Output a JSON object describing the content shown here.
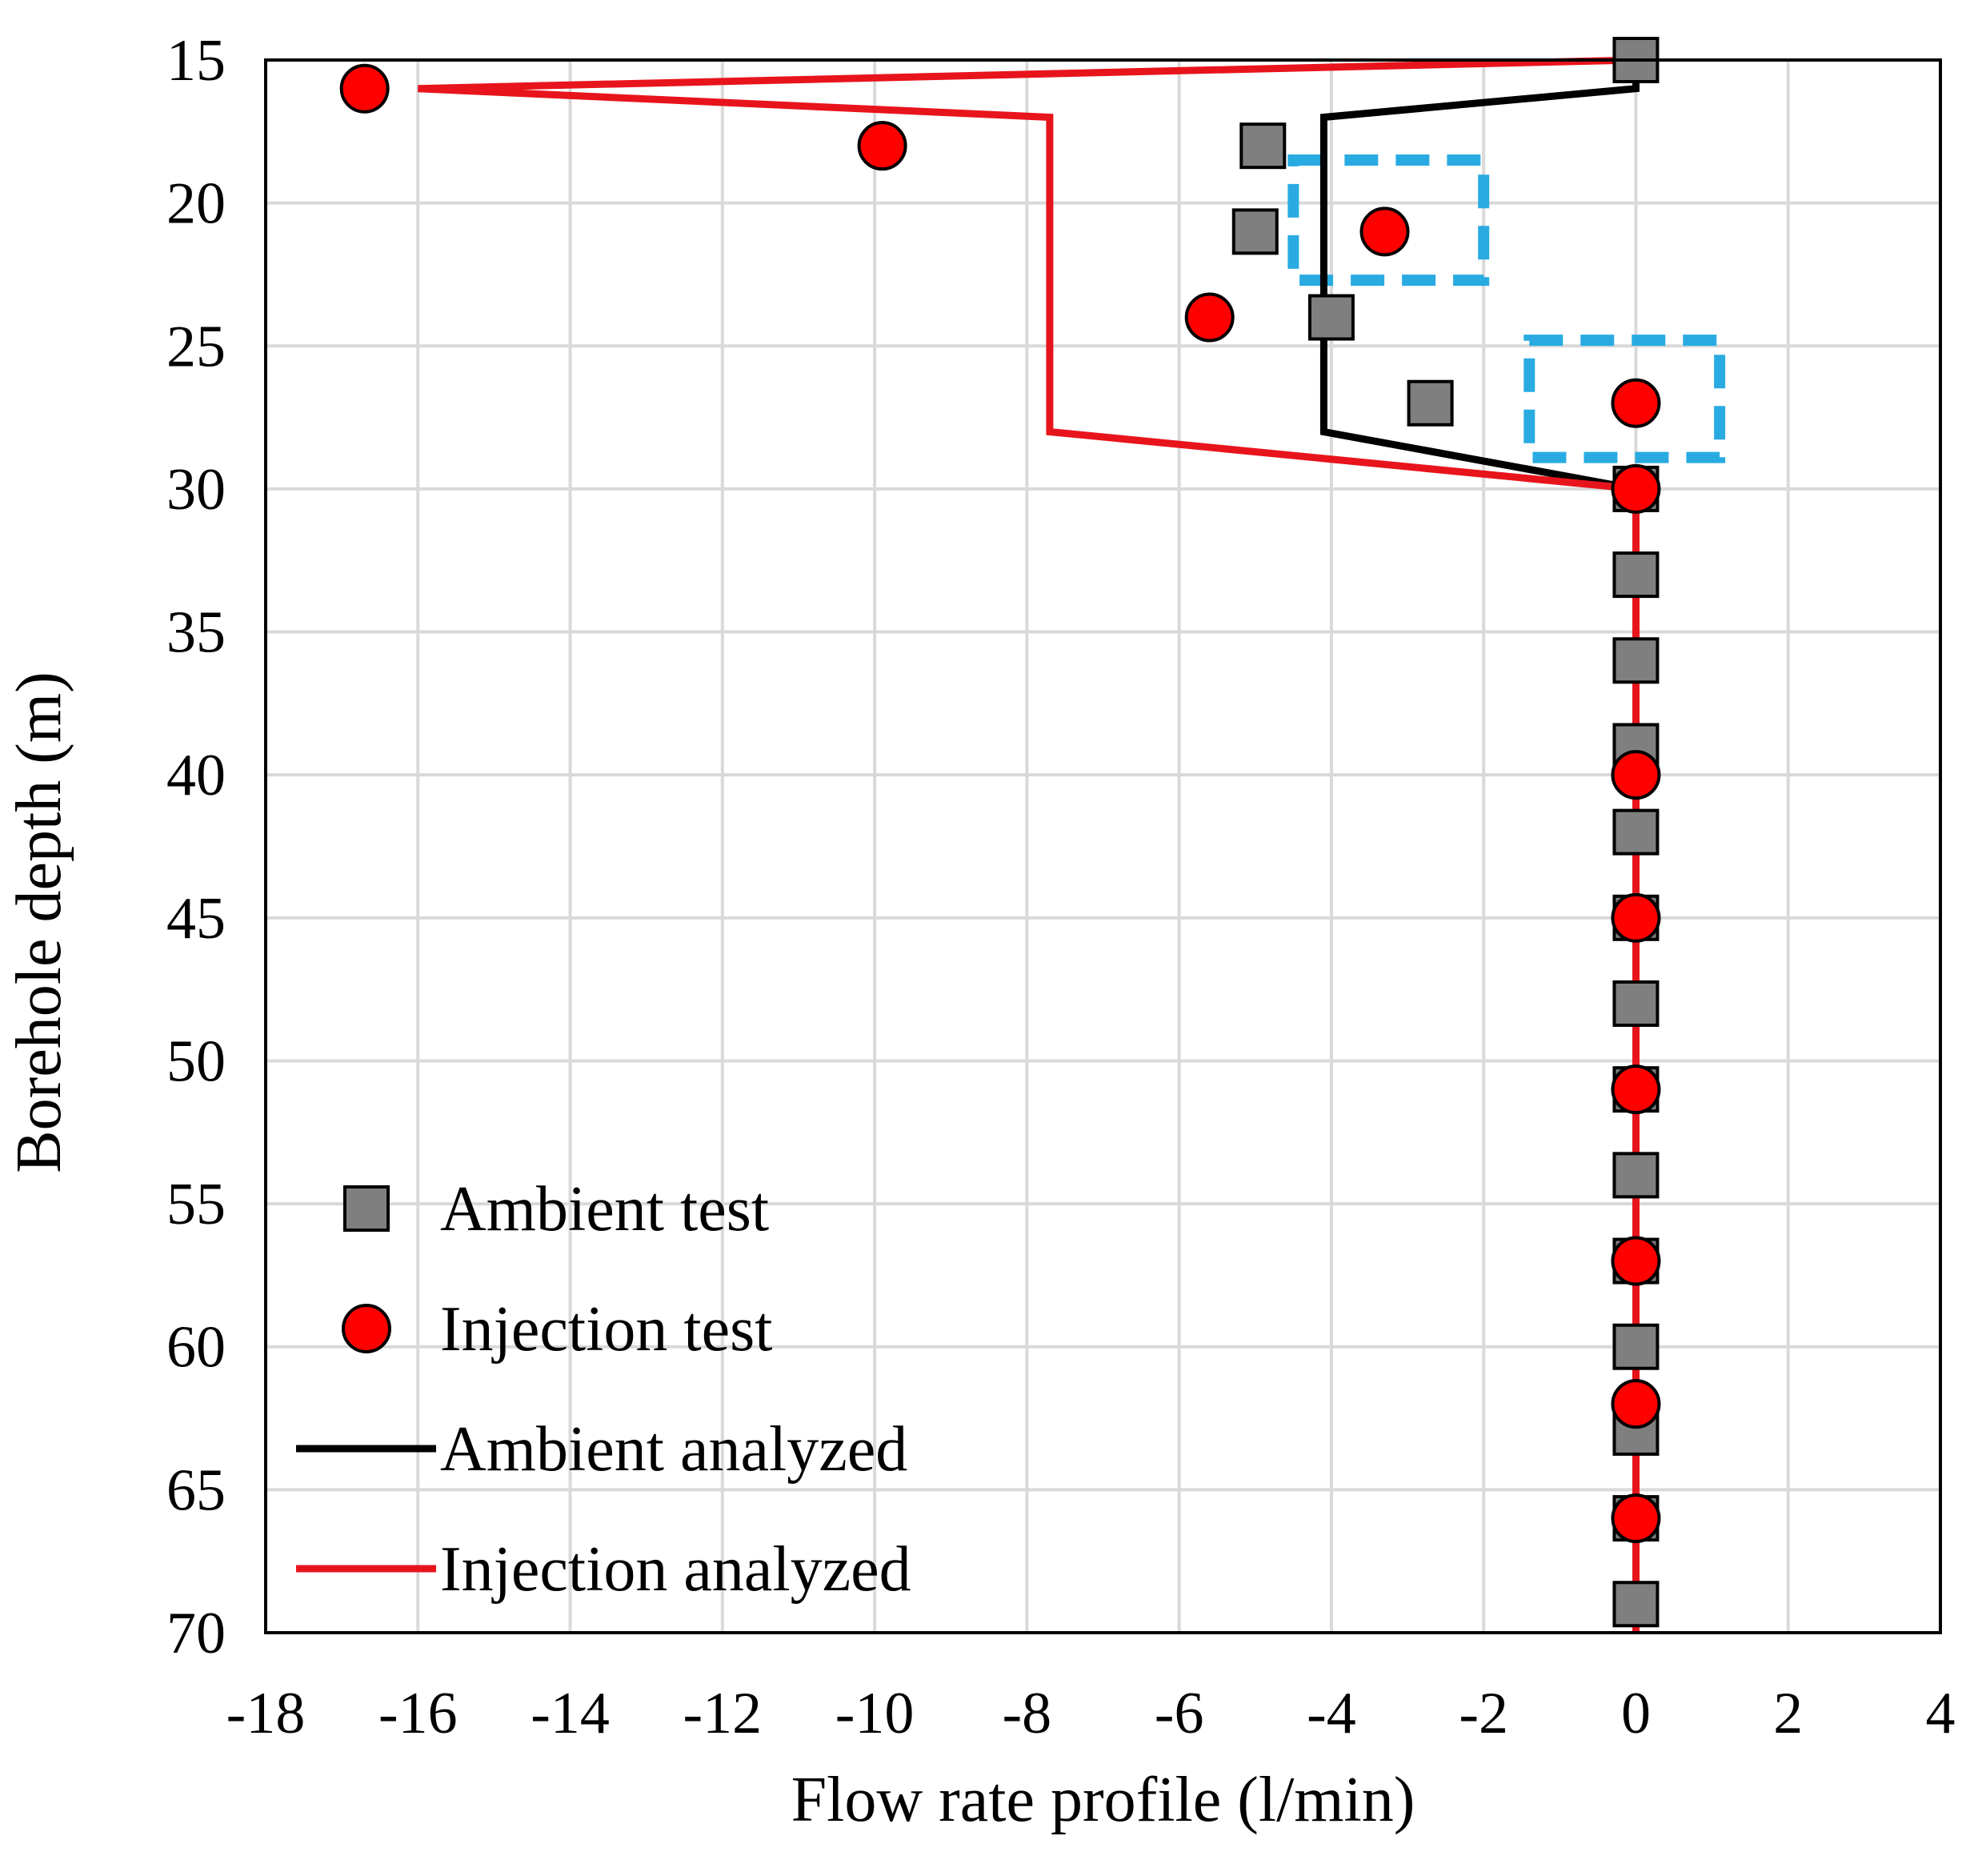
{
  "chart_data": {
    "type": "scatter",
    "title": "",
    "xlabel": "Flow rate profile (l/min)",
    "ylabel": "Borehole depth (m)",
    "xlim": [
      -18,
      4
    ],
    "ylim": [
      15,
      70
    ],
    "y_inverted": true,
    "x_ticks": [
      -18,
      -16,
      -14,
      -12,
      -10,
      -8,
      -6,
      -4,
      -2,
      0,
      2,
      4
    ],
    "y_ticks": [
      15,
      20,
      25,
      30,
      35,
      40,
      45,
      50,
      55,
      60,
      65,
      70
    ],
    "grid": true,
    "legend_position": "bottom-left",
    "series": [
      {
        "name": "Ambient test",
        "kind": "marker",
        "marker": "square",
        "color": "#7f7f7f",
        "points": [
          [
            0,
            15
          ],
          [
            -4.9,
            18
          ],
          [
            -5,
            21
          ],
          [
            -4.0,
            24
          ],
          [
            -2.7,
            27
          ],
          [
            0,
            30
          ],
          [
            0,
            33
          ],
          [
            0,
            36
          ],
          [
            0,
            39
          ],
          [
            0,
            42
          ],
          [
            0,
            45
          ],
          [
            0,
            48
          ],
          [
            0,
            51
          ],
          [
            0,
            54
          ],
          [
            0,
            57
          ],
          [
            0,
            60
          ],
          [
            0,
            63
          ],
          [
            0,
            66
          ],
          [
            0,
            69
          ]
        ]
      },
      {
        "name": "Injection test",
        "kind": "marker",
        "marker": "circle",
        "color": "#ff0000",
        "points": [
          [
            -16.7,
            16
          ],
          [
            -9.9,
            18
          ],
          [
            -3.3,
            21
          ],
          [
            -5.6,
            24
          ],
          [
            0,
            27
          ],
          [
            0,
            30
          ],
          [
            0,
            40
          ],
          [
            0,
            45
          ],
          [
            0,
            51
          ],
          [
            0,
            57
          ],
          [
            0,
            62
          ],
          [
            0,
            66
          ]
        ]
      },
      {
        "name": "Ambient analyzed",
        "kind": "line",
        "color": "#000000",
        "points": [
          [
            0,
            15
          ],
          [
            0,
            16
          ],
          [
            -4.1,
            17
          ],
          [
            -4.1,
            28
          ],
          [
            0,
            30
          ],
          [
            0,
            70
          ]
        ]
      },
      {
        "name": "Injection analyzed",
        "kind": "line",
        "color": "#e8141c",
        "points": [
          [
            0,
            15
          ],
          [
            -16.0,
            16
          ],
          [
            -7.7,
            17
          ],
          [
            -7.7,
            28
          ],
          [
            0,
            30
          ],
          [
            0,
            70
          ]
        ]
      }
    ],
    "highlight_boxes": {
      "color": "#29abe2",
      "style": "dashed",
      "boxes": [
        {
          "x_range": [
            -4.5,
            -2.0
          ],
          "y_range": [
            18.5,
            22.7
          ]
        },
        {
          "x_range": [
            -1.4,
            1.1
          ],
          "y_range": [
            24.8,
            28.9
          ]
        }
      ]
    }
  }
}
